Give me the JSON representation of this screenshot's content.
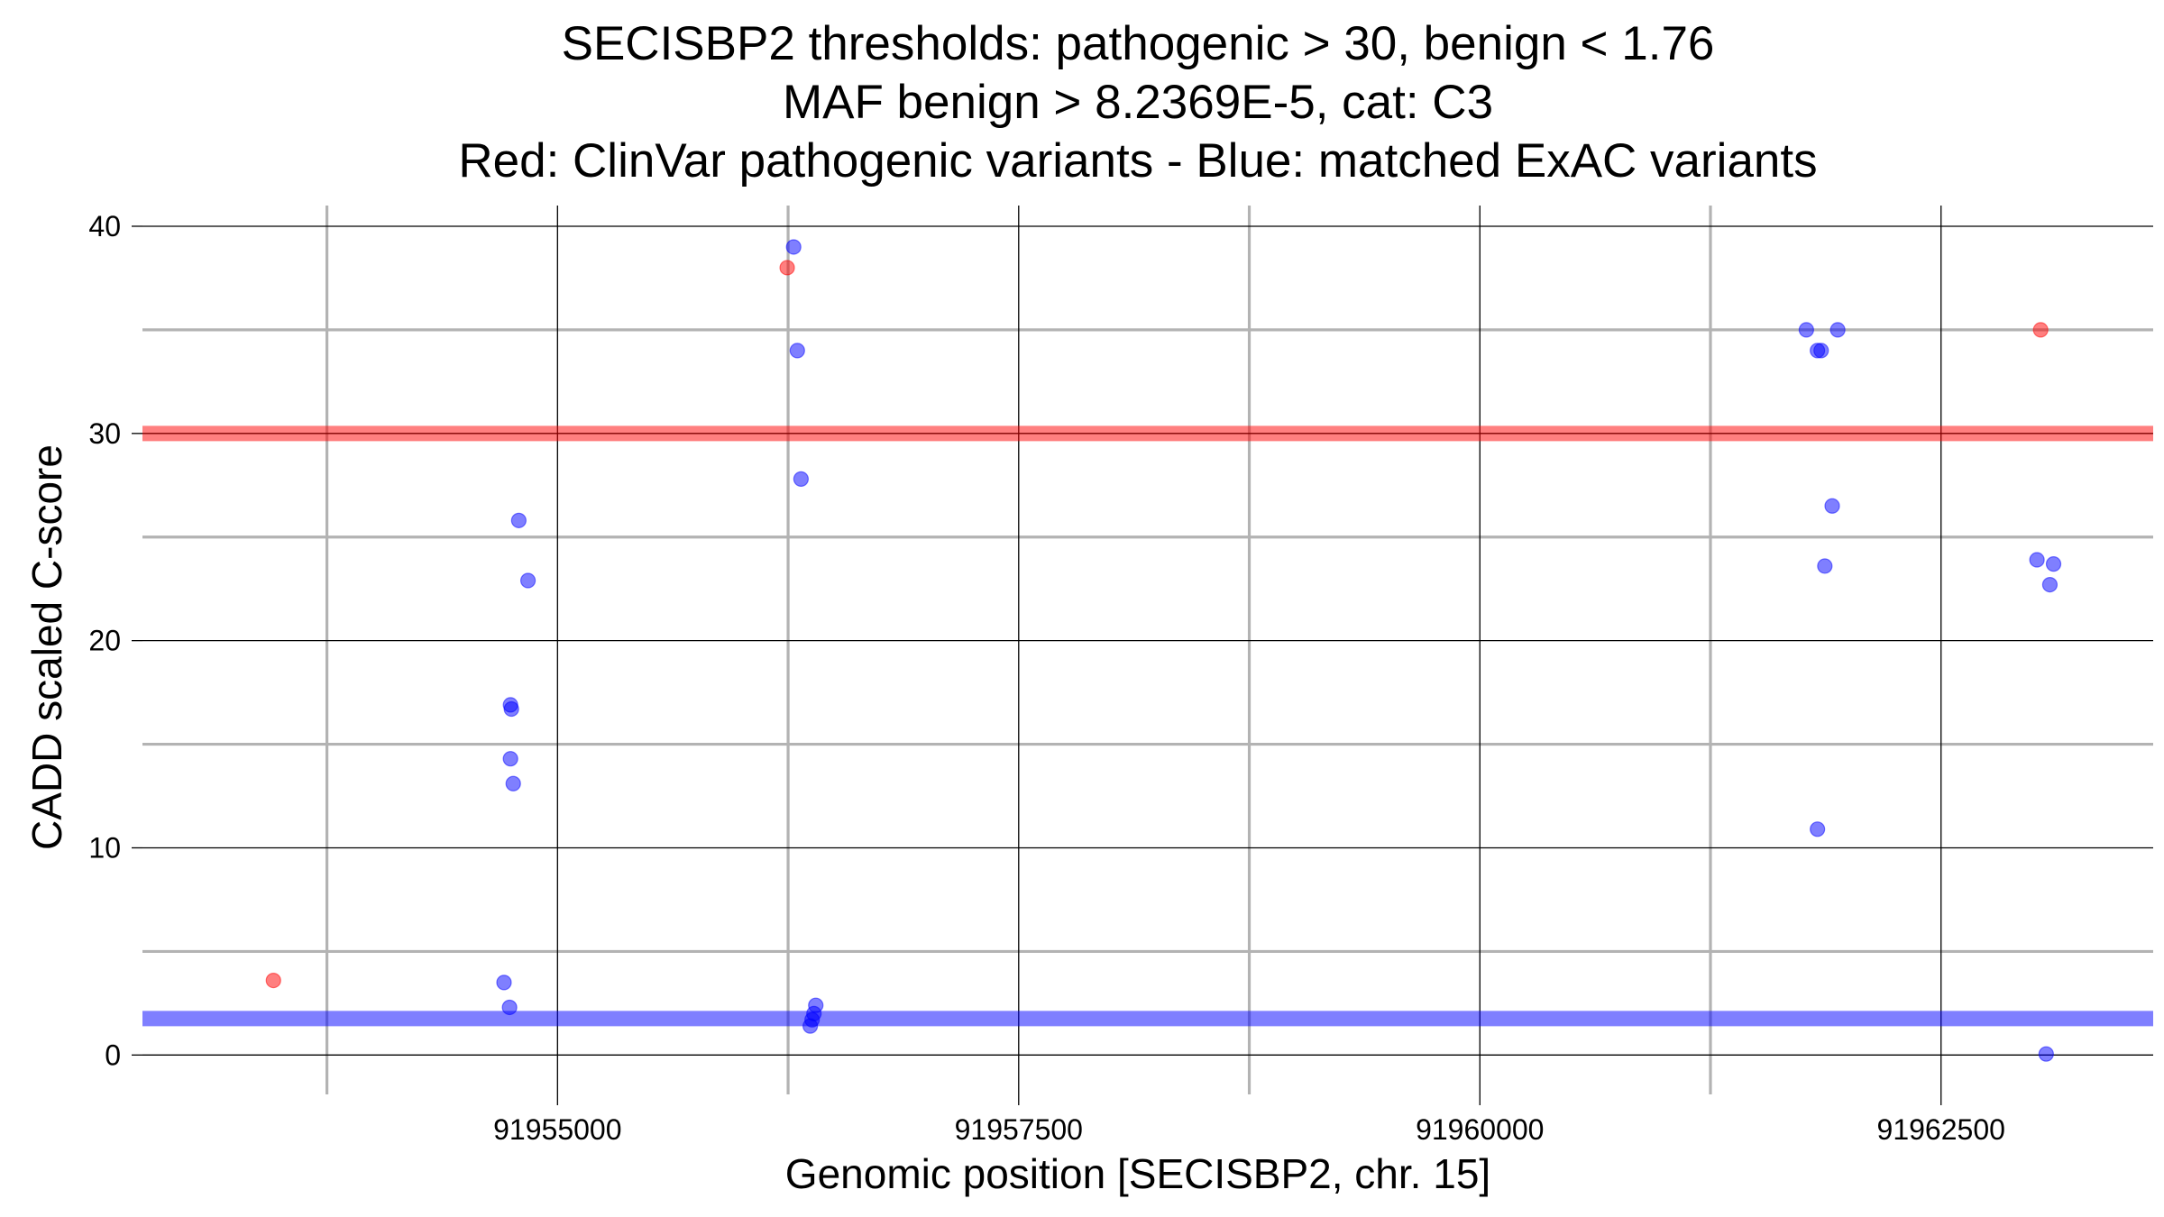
{
  "chart_data": {
    "type": "scatter",
    "title_lines": [
      "SECISBP2 thresholds: pathogenic > 30, benign < 1.76",
      "MAF benign > 8.2369E-5, cat: C3",
      "Red: ClinVar pathogenic variants - Blue: matched ExAC variants"
    ],
    "xlabel": "Genomic position [SECISBP2, chr. 15]",
    "ylabel": "CADD scaled C-score",
    "xlim": [
      91952750,
      91963650
    ],
    "ylim": [
      -1.9,
      41
    ],
    "x_major_ticks": [
      91955000,
      91957500,
      91960000,
      91962500
    ],
    "x_tick_labels": [
      "91955000",
      "91957500",
      "91960000",
      "91962500"
    ],
    "x_minor_ticks": [
      91953750,
      91956250,
      91958750,
      91961250
    ],
    "y_major_ticks": [
      0,
      10,
      20,
      30,
      40
    ],
    "y_tick_labels": [
      "0",
      "10",
      "20",
      "30",
      "40"
    ],
    "y_minor_ticks": [
      5,
      15,
      25,
      35
    ],
    "grid": true,
    "thresholds": [
      {
        "name": "pathogenic",
        "value": 30,
        "color": "#ff0000"
      },
      {
        "name": "benign",
        "value": 1.76,
        "color": "#0000ff"
      }
    ],
    "series": [
      {
        "color": "#ff0000",
        "points": [
          {
            "x": 91953460,
            "y": 3.6
          },
          {
            "x": 91956245,
            "y": 38
          },
          {
            "x": 91963040,
            "y": 35
          }
        ]
      },
      {
        "color": "#0000ff",
        "points": [
          {
            "x": 91954710,
            "y": 3.5
          },
          {
            "x": 91954740,
            "y": 2.3
          },
          {
            "x": 91954745,
            "y": 16.9
          },
          {
            "x": 91954750,
            "y": 16.7
          },
          {
            "x": 91954745,
            "y": 14.3
          },
          {
            "x": 91954760,
            "y": 13.1
          },
          {
            "x": 91954790,
            "y": 25.8
          },
          {
            "x": 91954840,
            "y": 22.9
          },
          {
            "x": 91956280,
            "y": 39
          },
          {
            "x": 91956300,
            "y": 34
          },
          {
            "x": 91956320,
            "y": 27.8
          },
          {
            "x": 91956400,
            "y": 2.4
          },
          {
            "x": 91956390,
            "y": 2.0
          },
          {
            "x": 91956380,
            "y": 1.7
          },
          {
            "x": 91956370,
            "y": 1.4
          },
          {
            "x": 91961770,
            "y": 35
          },
          {
            "x": 91961830,
            "y": 34
          },
          {
            "x": 91961850,
            "y": 34
          },
          {
            "x": 91961940,
            "y": 35
          },
          {
            "x": 91961910,
            "y": 26.5
          },
          {
            "x": 91961870,
            "y": 23.6
          },
          {
            "x": 91961830,
            "y": 10.9
          },
          {
            "x": 91963020,
            "y": 23.9
          },
          {
            "x": 91963110,
            "y": 23.7
          },
          {
            "x": 91963090,
            "y": 22.7
          },
          {
            "x": 91963070,
            "y": 0.05
          }
        ]
      }
    ]
  }
}
